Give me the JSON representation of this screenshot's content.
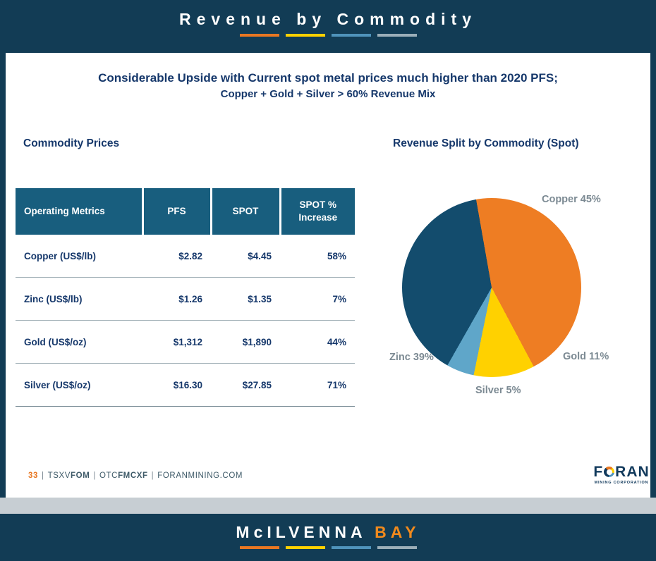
{
  "colors": {
    "band_navy": "#123C55",
    "table_header_bg": "#185E7E",
    "navy_text": "#16386B",
    "orange": "#E87722",
    "label_gray": "#7C8A93",
    "footer_text": "#3E5A68",
    "gray_strip": "#C7CED3",
    "accent_bars": [
      "#E87722",
      "#FFD100",
      "#4F93BB",
      "#9BAEB8"
    ]
  },
  "header": {
    "title": "Revenue by Commodity"
  },
  "subtitle": {
    "line1": "Considerable Upside with Current spot metal prices much higher than 2020 PFS;",
    "line2": "Copper + Gold + Silver > 60% Revenue Mix"
  },
  "left": {
    "heading": "Commodity Prices"
  },
  "right": {
    "heading": "Revenue Split by Commodity (Spot)"
  },
  "table": {
    "headers": [
      "Operating Metrics",
      "PFS",
      "SPOT",
      "SPOT % Increase"
    ],
    "rows": [
      {
        "metric": "Copper (US$/lb)",
        "pfs": "$2.82",
        "spot": "$4.45",
        "increase": "58%"
      },
      {
        "metric": "Zinc (US$/lb)",
        "pfs": "$1.26",
        "spot": "$1.35",
        "increase": "7%"
      },
      {
        "metric": "Gold (US$/oz)",
        "pfs": "$1,312",
        "spot": "$1,890",
        "increase": "44%"
      },
      {
        "metric": "Silver (US$/oz)",
        "pfs": "$16.30",
        "spot": "$27.85",
        "increase": "71%"
      }
    ]
  },
  "chart_data": {
    "type": "pie",
    "title": "Revenue Split by Commodity (Spot)",
    "labels": [
      "Copper",
      "Gold",
      "Silver",
      "Zinc"
    ],
    "values": [
      45,
      11,
      5,
      39
    ],
    "colors": [
      "#EE7D23",
      "#FFD100",
      "#5FA6C9",
      "#134C6D"
    ],
    "display_labels": [
      "Copper 45%",
      "Gold 11%",
      "Silver 5%",
      "Zinc 39%"
    ],
    "start_angle_deg": -10,
    "legend_position": "labels-around-pie"
  },
  "footer": {
    "page_number": "33",
    "separator": "|",
    "ticker1_prefix": "TSXV",
    "ticker1_bold": "FOM",
    "ticker2_prefix": "OTC",
    "ticker2_bold": "FMCXF",
    "website": "FORANMINING.COM",
    "logo": {
      "prefix": "F",
      "suffix": "RAN",
      "subtext": "MINING CORPORATION"
    }
  },
  "bottom_banner": {
    "main": "McILVENNA",
    "accent": "BAY"
  }
}
